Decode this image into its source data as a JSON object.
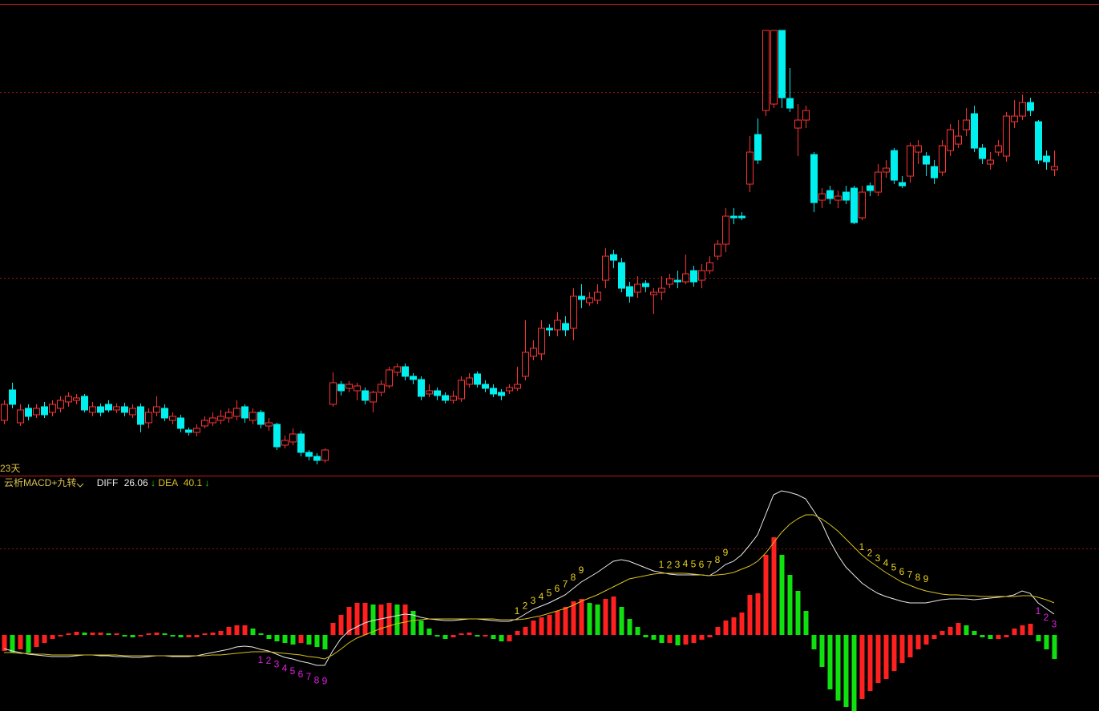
{
  "chart_data": [
    {
      "type": "candlestick",
      "period_label": "23天",
      "up_color": "#ff3232",
      "down_color": "#00f0f0",
      "ylim": [
        6,
        600
      ],
      "open": [
        75,
        113,
        72,
        90,
        82,
        92,
        85,
        90,
        98,
        100,
        105,
        85,
        92,
        95,
        88,
        92,
        82,
        92,
        72,
        85,
        90,
        75,
        78,
        63,
        60,
        68,
        72,
        75,
        78,
        80,
        92,
        75,
        85,
        68,
        70,
        44,
        48,
        58,
        35,
        30,
        25,
        95,
        120,
        115,
        112,
        112,
        98,
        110,
        118,
        135,
        142,
        130,
        126,
        108,
        112,
        106,
        100,
        102,
        120,
        133,
        120,
        115,
        110,
        112,
        115,
        130,
        155,
        158,
        190,
        188,
        196,
        190,
        230,
        222,
        225,
        250,
        282,
        272,
        242,
        235,
        246,
        232,
        235,
        245,
        250,
        248,
        262,
        250,
        262,
        280,
        295,
        330,
        330,
        370,
        432,
        462,
        470,
        562,
        477,
        440,
        450,
        407,
        350,
        362,
        350,
        360,
        365,
        328,
        368,
        360,
        385,
        412,
        372,
        380,
        410,
        405,
        392,
        385,
        412,
        420,
        438,
        458,
        415,
        395,
        410,
        405,
        448,
        455,
        472,
        448,
        405,
        388
      ],
      "high": [
        100,
        122,
        95,
        95,
        95,
        98,
        100,
        105,
        110,
        108,
        108,
        98,
        96,
        100,
        96,
        97,
        95,
        96,
        90,
        105,
        95,
        85,
        82,
        66,
        70,
        80,
        85,
        88,
        90,
        100,
        95,
        90,
        88,
        78,
        72,
        56,
        65,
        62,
        38,
        34,
        40,
        135,
        124,
        124,
        122,
        116,
        112,
        125,
        142,
        146,
        146,
        134,
        130,
        120,
        116,
        110,
        112,
        130,
        134,
        136,
        125,
        120,
        114,
        120,
        142,
        200,
        175,
        200,
        195,
        210,
        205,
        240,
        245,
        235,
        245,
        290,
        288,
        278,
        248,
        255,
        250,
        240,
        255,
        258,
        262,
        282,
        268,
        270,
        280,
        300,
        340,
        340,
        335,
        430,
        452,
        562,
        562,
        562,
        515,
        470,
        468,
        410,
        365,
        368,
        362,
        368,
        368,
        368,
        372,
        395,
        400,
        415,
        380,
        422,
        425,
        410,
        400,
        425,
        445,
        450,
        465,
        468,
        420,
        410,
        425,
        460,
        475,
        482,
        478,
        450,
        412,
        412
      ],
      "low": [
        70,
        90,
        68,
        75,
        78,
        78,
        80,
        85,
        92,
        95,
        85,
        80,
        80,
        85,
        84,
        80,
        78,
        60,
        65,
        80,
        74,
        70,
        60,
        56,
        55,
        65,
        68,
        70,
        72,
        75,
        72,
        70,
        65,
        62,
        38,
        40,
        44,
        30,
        25,
        20,
        22,
        92,
        106,
        110,
        100,
        95,
        85,
        105,
        115,
        130,
        125,
        120,
        100,
        104,
        100,
        96,
        96,
        98,
        116,
        116,
        110,
        104,
        100,
        108,
        112,
        125,
        150,
        150,
        180,
        180,
        180,
        175,
        215,
        218,
        220,
        240,
        265,
        235,
        222,
        228,
        235,
        208,
        225,
        240,
        240,
        245,
        242,
        240,
        258,
        275,
        285,
        320,
        325,
        360,
        395,
        455,
        465,
        465,
        460,
        405,
        440,
        335,
        340,
        345,
        340,
        345,
        320,
        325,
        355,
        355,
        378,
        370,
        365,
        372,
        395,
        380,
        370,
        380,
        405,
        415,
        430,
        410,
        395,
        388,
        405,
        398,
        440,
        450,
        455,
        395,
        388,
        380
      ],
      "close": [
        95,
        95,
        88,
        80,
        90,
        82,
        95,
        100,
        105,
        103,
        88,
        92,
        85,
        88,
        92,
        85,
        90,
        70,
        85,
        92,
        78,
        80,
        65,
        60,
        65,
        75,
        78,
        80,
        85,
        90,
        78,
        85,
        70,
        72,
        42,
        50,
        58,
        35,
        30,
        25,
        38,
        122,
        112,
        120,
        118,
        100,
        110,
        120,
        138,
        142,
        130,
        126,
        105,
        112,
        106,
        100,
        105,
        125,
        128,
        120,
        115,
        108,
        106,
        116,
        120,
        160,
        165,
        190,
        188,
        200,
        188,
        230,
        226,
        228,
        235,
        280,
        275,
        240,
        230,
        245,
        242,
        235,
        240,
        252,
        248,
        258,
        248,
        262,
        272,
        295,
        330,
        328,
        328,
        410,
        400,
        562,
        562,
        478,
        465,
        450,
        462,
        347,
        358,
        352,
        355,
        350,
        322,
        360,
        362,
        385,
        390,
        375,
        368,
        418,
        418,
        395,
        378,
        418,
        438,
        430,
        450,
        415,
        402,
        400,
        418,
        455,
        455,
        472,
        462,
        400,
        398,
        392
      ]
    },
    {
      "type": "macd",
      "title": "云析MACD+九转",
      "up_color": "#ff2020",
      "down_color": "#10e010",
      "ylim": [
        -95,
        193
      ],
      "histogram": [
        -20,
        -22,
        -18,
        -22,
        -15,
        -10,
        -5,
        -2,
        2,
        4,
        3,
        3,
        3,
        2,
        2,
        -2,
        -3,
        -2,
        2,
        3,
        2,
        -2,
        -3,
        -3,
        -3,
        2,
        3,
        5,
        10,
        12,
        12,
        8,
        2,
        -5,
        -8,
        -10,
        -12,
        -10,
        -12,
        -15,
        -18,
        15,
        25,
        35,
        40,
        40,
        38,
        38,
        40,
        38,
        38,
        30,
        18,
        8,
        -2,
        -5,
        -3,
        2,
        3,
        -2,
        -2,
        -5,
        -8,
        -8,
        5,
        10,
        18,
        22,
        25,
        30,
        35,
        42,
        45,
        40,
        38,
        45,
        48,
        35,
        20,
        10,
        -3,
        -6,
        -10,
        -10,
        -13,
        -12,
        -10,
        -6,
        -3,
        10,
        18,
        22,
        28,
        50,
        52,
        100,
        122,
        100,
        75,
        55,
        30,
        -18,
        -40,
        -68,
        -82,
        -90,
        -95,
        -80,
        -70,
        -60,
        -55,
        -45,
        -35,
        -28,
        -18,
        -12,
        -5,
        5,
        10,
        15,
        12,
        5,
        -3,
        -5,
        -5,
        -3,
        8,
        12,
        14,
        -8,
        -18,
        -30
      ],
      "series": [
        {
          "name": "DIFF",
          "color": "#e8e8e8",
          "arrow": "↓",
          "values": [
            -17,
            -20,
            -22,
            -24,
            -25,
            -26,
            -27,
            -27,
            -27,
            -26,
            -25,
            -25,
            -26,
            -26,
            -27,
            -27,
            -28,
            -28,
            -27,
            -26,
            -26,
            -27,
            -27,
            -27,
            -26,
            -24,
            -22,
            -20,
            -18,
            -15,
            -14,
            -15,
            -18,
            -20,
            -24,
            -28,
            -30,
            -33,
            -35,
            -38,
            -38,
            -20,
            -5,
            5,
            10,
            15,
            18,
            20,
            22,
            24,
            26,
            25,
            22,
            20,
            19,
            18,
            18,
            19,
            20,
            20,
            19,
            18,
            17,
            17,
            20,
            26,
            32,
            36,
            40,
            45,
            50,
            58,
            66,
            72,
            78,
            85,
            92,
            94,
            92,
            88,
            84,
            80,
            78,
            76,
            75,
            75,
            75,
            75,
            74,
            80,
            88,
            92,
            100,
            112,
            125,
            150,
            175,
            180,
            178,
            175,
            170,
            155,
            140,
            118,
            100,
            85,
            75,
            65,
            58,
            52,
            48,
            45,
            42,
            40,
            40,
            40,
            42,
            44,
            45,
            45,
            45,
            44,
            45,
            46,
            47,
            48,
            50,
            55,
            52,
            40,
            33,
            26.06
          ]
        },
        {
          "name": "DEA",
          "color": "#d8c020",
          "arrow": "↓",
          "values": [
            -22,
            -22,
            -23,
            -23,
            -24,
            -24,
            -25,
            -25,
            -25,
            -25,
            -25,
            -25,
            -25,
            -25,
            -25,
            -26,
            -26,
            -26,
            -26,
            -26,
            -26,
            -26,
            -26,
            -26,
            -26,
            -26,
            -25,
            -25,
            -24,
            -23,
            -22,
            -21,
            -21,
            -21,
            -22,
            -23,
            -24,
            -25,
            -27,
            -28,
            -30,
            -25,
            -18,
            -10,
            -4,
            0,
            4,
            8,
            11,
            14,
            16,
            18,
            19,
            20,
            20,
            20,
            20,
            20,
            20,
            20,
            20,
            20,
            19,
            19,
            19,
            20,
            22,
            24,
            27,
            30,
            33,
            37,
            42,
            46,
            50,
            55,
            60,
            65,
            70,
            72,
            74,
            76,
            77,
            77,
            77,
            77,
            76,
            75,
            74,
            75,
            76,
            78,
            82,
            86,
            92,
            102,
            115,
            128,
            138,
            145,
            150,
            150,
            145,
            138,
            130,
            120,
            110,
            100,
            92,
            85,
            78,
            72,
            66,
            62,
            58,
            55,
            53,
            51,
            50,
            50,
            49,
            49,
            48,
            48,
            48,
            48,
            48,
            49,
            49,
            47,
            44,
            40.1
          ]
        }
      ],
      "nine_counts": [
        {
          "start": 32,
          "color": "#e020e0",
          "position": "below",
          "labels": [
            "1",
            "2",
            "3",
            "4",
            "5",
            "6",
            "7",
            "8",
            "9"
          ]
        },
        {
          "start": 64,
          "color": "#e8d020",
          "position": "above",
          "labels": [
            "1",
            "2",
            "3",
            "4",
            "5",
            "6",
            "7",
            "8",
            "9"
          ]
        },
        {
          "start": 82,
          "color": "#e8d020",
          "position": "above",
          "labels": [
            "1",
            "2",
            "3",
            "4",
            "5",
            "6",
            "7",
            "8",
            "9"
          ]
        },
        {
          "start": 107,
          "color": "#e8d020",
          "position": "above",
          "labels": [
            "1",
            "2",
            "3",
            "4",
            "5",
            "6",
            "7",
            "8",
            "9"
          ]
        },
        {
          "start": 129,
          "color": "#e020e0",
          "position": "below",
          "labels": [
            "1",
            "2",
            "3"
          ]
        }
      ]
    }
  ]
}
